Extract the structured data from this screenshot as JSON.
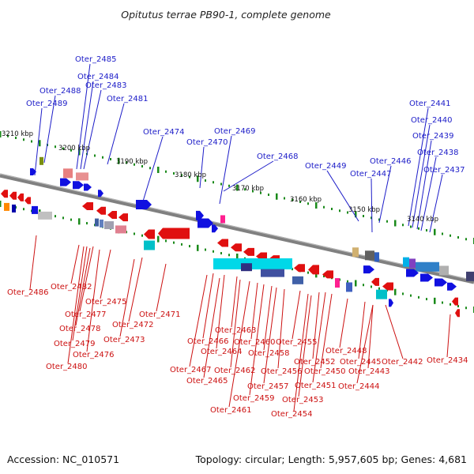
{
  "title": "Opitutus terrae PB90-1, complete genome",
  "footer": {
    "accession": "Accession: NC_010571",
    "summary": "Topology: circular; Length: 5,957,605 bp; Genes: 4,681"
  },
  "colors": {
    "forward": "#1010e0",
    "reverse": "#e01010",
    "backbone": "#808080",
    "tick": "#1a8a1a",
    "top_label": "#1c1cc8",
    "bottom_label": "#cc1010"
  },
  "kbp_labels": [
    "3210 kbp",
    "3200 kbp",
    "3190 kbp",
    "3180 kbp",
    "3170 kbp",
    "3160 kbp",
    "3150 kbp",
    "3140 kbp"
  ],
  "top_genes": [
    "Oter_2485",
    "Oter_2484",
    "Oter_2483",
    "Oter_2488",
    "Oter_2489",
    "Oter_2481",
    "Oter_2474",
    "Oter_2470",
    "Oter_2469",
    "Oter_2468",
    "Oter_2449",
    "Oter_2447",
    "Oter_2446",
    "Oter_2441",
    "Oter_2440",
    "Oter_2439",
    "Oter_2438",
    "Oter_2437"
  ],
  "bottom_genes": [
    "Oter_2486",
    "Oter_2482",
    "Oter_2475",
    "Oter_2477",
    "Oter_2478",
    "Oter_2479",
    "Oter_2476",
    "Oter_2480",
    "Oter_2473",
    "Oter_2472",
    "Oter_2471",
    "Oter_2466",
    "Oter_2464",
    "Oter_2463",
    "Oter_2467",
    "Oter_2465",
    "Oter_2462",
    "Oter_2461",
    "Oter_2460",
    "Oter_2459",
    "Oter_2458",
    "Oter_2457",
    "Oter_2456",
    "Oter_2455",
    "Oter_2454",
    "Oter_2453",
    "Oter_2452",
    "Oter_2451",
    "Oter_2450",
    "Oter_2448",
    "Oter_2445",
    "Oter_2444",
    "Oter_2443",
    "Oter_2442",
    "Oter_2434"
  ]
}
